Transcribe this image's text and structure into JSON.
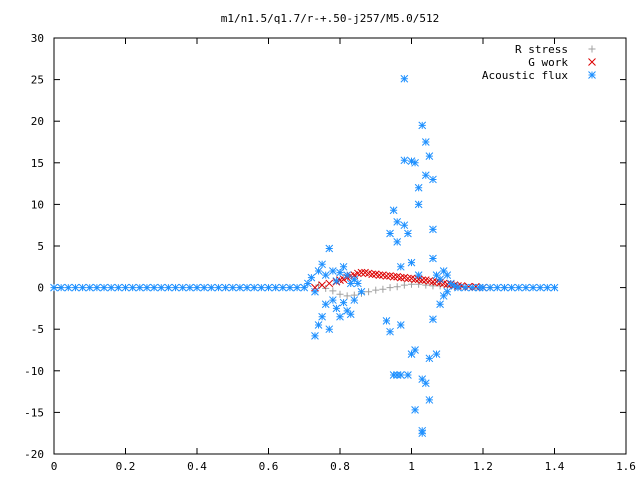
{
  "chart_data": {
    "type": "scatter",
    "title": "m1/n1.5/q1.7/r-+.50-j257/M5.0/512",
    "xlabel": "",
    "ylabel": "",
    "xlim": [
      0,
      1.6
    ],
    "ylim": [
      -20,
      30
    ],
    "xticks": [
      "0",
      "0.2",
      "0.4",
      "0.6",
      "0.8",
      "1",
      "1.2",
      "1.4",
      "1.6"
    ],
    "yticks": [
      "30",
      "25",
      "20",
      "15",
      "10",
      "5",
      "0",
      "-5",
      "-10",
      "-15",
      "-20"
    ],
    "grid": false,
    "legend_position": "top-right",
    "series": [
      {
        "name": "R stress",
        "marker": "+",
        "color": "#a0a0a0",
        "points": [
          [
            0.74,
            0.3
          ],
          [
            0.76,
            -0.1
          ],
          [
            0.78,
            -0.4
          ],
          [
            0.8,
            -0.8
          ],
          [
            0.82,
            -1.0
          ],
          [
            0.84,
            -0.9
          ],
          [
            0.86,
            -0.7
          ],
          [
            0.88,
            -0.5
          ],
          [
            0.9,
            -0.3
          ],
          [
            0.92,
            -0.2
          ],
          [
            0.94,
            0.0
          ],
          [
            0.96,
            0.1
          ],
          [
            0.98,
            0.3
          ],
          [
            1.0,
            0.4
          ],
          [
            1.02,
            0.4
          ],
          [
            1.04,
            0.3
          ],
          [
            1.06,
            0.2
          ],
          [
            1.08,
            0.2
          ],
          [
            1.1,
            0.1
          ],
          [
            1.12,
            0.1
          ],
          [
            1.15,
            0.1
          ],
          [
            1.18,
            0.0
          ],
          [
            1.22,
            0.0
          ],
          [
            1.26,
            0.0
          ]
        ]
      },
      {
        "name": "G work",
        "marker": "x",
        "color": "#dd0000",
        "points": [
          [
            0.73,
            0.0
          ],
          [
            0.75,
            0.3
          ],
          [
            0.77,
            0.5
          ],
          [
            0.79,
            0.7
          ],
          [
            0.8,
            0.9
          ],
          [
            0.81,
            1.0
          ],
          [
            0.82,
            1.2
          ],
          [
            0.83,
            1.4
          ],
          [
            0.84,
            1.5
          ],
          [
            0.85,
            1.7
          ],
          [
            0.86,
            1.8
          ],
          [
            0.87,
            1.8
          ],
          [
            0.88,
            1.7
          ],
          [
            0.89,
            1.6
          ],
          [
            0.9,
            1.6
          ],
          [
            0.91,
            1.5
          ],
          [
            0.92,
            1.5
          ],
          [
            0.93,
            1.4
          ],
          [
            0.94,
            1.4
          ],
          [
            0.95,
            1.3
          ],
          [
            0.96,
            1.3
          ],
          [
            0.97,
            1.2
          ],
          [
            0.98,
            1.2
          ],
          [
            0.99,
            1.1
          ],
          [
            1.0,
            1.1
          ],
          [
            1.01,
            1.0
          ],
          [
            1.02,
            1.0
          ],
          [
            1.03,
            0.9
          ],
          [
            1.04,
            0.9
          ],
          [
            1.05,
            0.8
          ],
          [
            1.06,
            0.7
          ],
          [
            1.07,
            0.7
          ],
          [
            1.08,
            0.6
          ],
          [
            1.09,
            0.5
          ],
          [
            1.1,
            0.4
          ],
          [
            1.11,
            0.4
          ],
          [
            1.12,
            0.3
          ],
          [
            1.13,
            0.2
          ],
          [
            1.14,
            0.2
          ],
          [
            1.16,
            0.1
          ],
          [
            1.18,
            0.1
          ],
          [
            1.2,
            0.0
          ]
        ]
      },
      {
        "name": "Acoustic flux",
        "marker": "*",
        "color": "#1e90ff",
        "points": [
          [
            0.0,
            0.0
          ],
          [
            0.02,
            0.0
          ],
          [
            0.04,
            0.0
          ],
          [
            0.06,
            0.0
          ],
          [
            0.08,
            0.0
          ],
          [
            0.1,
            0.0
          ],
          [
            0.12,
            0.0
          ],
          [
            0.14,
            0.0
          ],
          [
            0.16,
            0.0
          ],
          [
            0.18,
            0.0
          ],
          [
            0.2,
            0.0
          ],
          [
            0.22,
            0.0
          ],
          [
            0.24,
            0.0
          ],
          [
            0.26,
            0.0
          ],
          [
            0.28,
            0.0
          ],
          [
            0.3,
            0.0
          ],
          [
            0.32,
            0.0
          ],
          [
            0.34,
            0.0
          ],
          [
            0.36,
            0.0
          ],
          [
            0.38,
            0.0
          ],
          [
            0.4,
            0.0
          ],
          [
            0.42,
            0.0
          ],
          [
            0.44,
            0.0
          ],
          [
            0.46,
            0.0
          ],
          [
            0.48,
            0.0
          ],
          [
            0.5,
            0.0
          ],
          [
            0.52,
            0.0
          ],
          [
            0.54,
            0.0
          ],
          [
            0.56,
            0.0
          ],
          [
            0.58,
            0.0
          ],
          [
            0.6,
            0.0
          ],
          [
            0.62,
            0.0
          ],
          [
            0.64,
            0.0
          ],
          [
            0.66,
            0.0
          ],
          [
            0.68,
            0.0
          ],
          [
            0.7,
            0.0
          ],
          [
            1.2,
            0.0
          ],
          [
            1.22,
            0.0
          ],
          [
            1.24,
            0.0
          ],
          [
            1.26,
            0.0
          ],
          [
            1.28,
            0.0
          ],
          [
            1.3,
            0.0
          ],
          [
            1.32,
            0.0
          ],
          [
            1.34,
            0.0
          ],
          [
            1.36,
            0.0
          ],
          [
            1.38,
            0.0
          ],
          [
            1.4,
            0.0
          ],
          [
            0.71,
            0.5
          ],
          [
            0.72,
            1.2
          ],
          [
            0.73,
            -0.5
          ],
          [
            0.74,
            2.0
          ],
          [
            0.74,
            -4.5
          ],
          [
            0.73,
            -5.8
          ],
          [
            0.75,
            2.8
          ],
          [
            0.75,
            -3.5
          ],
          [
            0.76,
            1.5
          ],
          [
            0.76,
            -2.0
          ],
          [
            0.77,
            4.7
          ],
          [
            0.77,
            -5.0
          ],
          [
            0.78,
            2.0
          ],
          [
            0.78,
            -1.5
          ],
          [
            0.79,
            0.8
          ],
          [
            0.79,
            -2.5
          ],
          [
            0.8,
            1.8
          ],
          [
            0.8,
            -3.5
          ],
          [
            0.81,
            2.5
          ],
          [
            0.81,
            -1.8
          ],
          [
            0.82,
            1.5
          ],
          [
            0.82,
            -2.8
          ],
          [
            0.83,
            0.5
          ],
          [
            0.83,
            -3.2
          ],
          [
            0.84,
            1.0
          ],
          [
            0.84,
            -1.5
          ],
          [
            0.85,
            0.5
          ],
          [
            0.86,
            -0.5
          ],
          [
            0.93,
            -4.0
          ],
          [
            0.94,
            6.5
          ],
          [
            0.94,
            -5.3
          ],
          [
            0.95,
            9.3
          ],
          [
            0.95,
            -10.5
          ],
          [
            0.96,
            7.9
          ],
          [
            0.96,
            5.5
          ],
          [
            0.96,
            -10.5
          ],
          [
            0.97,
            2.5
          ],
          [
            0.97,
            -4.5
          ],
          [
            0.97,
            -10.5
          ],
          [
            0.98,
            7.5
          ],
          [
            0.98,
            15.3
          ],
          [
            0.98,
            25.1
          ],
          [
            0.99,
            6.5
          ],
          [
            0.99,
            -10.5
          ],
          [
            1.0,
            15.2
          ],
          [
            1.0,
            -8.0
          ],
          [
            1.0,
            3.0
          ],
          [
            1.01,
            15.0
          ],
          [
            1.01,
            -14.7
          ],
          [
            1.01,
            -7.5
          ],
          [
            1.02,
            12.0
          ],
          [
            1.02,
            10.0
          ],
          [
            1.02,
            1.5
          ],
          [
            1.03,
            19.5
          ],
          [
            1.03,
            -17.2
          ],
          [
            1.03,
            -17.5
          ],
          [
            1.03,
            -11.0
          ],
          [
            1.04,
            17.5
          ],
          [
            1.04,
            13.5
          ],
          [
            1.04,
            -11.5
          ],
          [
            1.05,
            15.8
          ],
          [
            1.05,
            -13.5
          ],
          [
            1.05,
            -8.5
          ],
          [
            1.06,
            13.0
          ],
          [
            1.06,
            7.0
          ],
          [
            1.06,
            3.5
          ],
          [
            1.06,
            -3.8
          ],
          [
            1.07,
            -8.0
          ],
          [
            1.07,
            1.5
          ],
          [
            1.08,
            1.0
          ],
          [
            1.08,
            -2.0
          ],
          [
            1.09,
            2.0
          ],
          [
            1.09,
            -1.0
          ],
          [
            1.1,
            1.5
          ],
          [
            1.1,
            -0.5
          ],
          [
            1.11,
            0.5
          ],
          [
            1.12,
            0.2
          ],
          [
            1.13,
            0.0
          ],
          [
            1.15,
            0.0
          ],
          [
            1.17,
            0.0
          ],
          [
            1.19,
            0.0
          ]
        ]
      }
    ]
  }
}
